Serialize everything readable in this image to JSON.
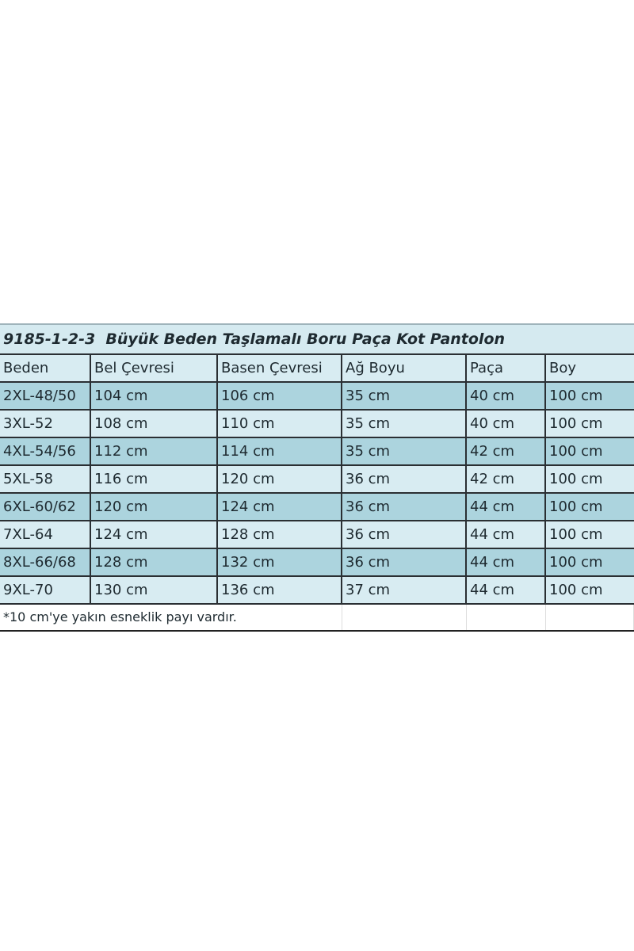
{
  "title": "9185-1-2-3  Büyük Beden Taşlamalı Boru Paça Kot Pantolon",
  "headers": [
    "Beden",
    "Bel Çevresi",
    "Basen Çevresi",
    "Ağ Boyu",
    "Paça",
    "Boy"
  ],
  "rows": [
    [
      "2XL-48/50",
      "104 cm",
      "106 cm",
      "35 cm",
      "40 cm",
      "100 cm"
    ],
    [
      "3XL-52",
      "108 cm",
      "110 cm",
      "35 cm",
      "40 cm",
      "100 cm"
    ],
    [
      "4XL-54/56",
      "112 cm",
      "114 cm",
      "35 cm",
      "42 cm",
      "100 cm"
    ],
    [
      "5XL-58",
      "116 cm",
      "120 cm",
      "36 cm",
      "42 cm",
      "100 cm"
    ],
    [
      "6XL-60/62",
      "120 cm",
      "124 cm",
      "36 cm",
      "44 cm",
      "100 cm"
    ],
    [
      "7XL-64",
      "124 cm",
      "128 cm",
      "36 cm",
      "44 cm",
      "100 cm"
    ],
    [
      "8XL-66/68",
      "128 cm",
      "132 cm",
      "36 cm",
      "44 cm",
      "100 cm"
    ],
    [
      "9XL-70",
      "130 cm",
      "136 cm",
      "37 cm",
      "44 cm",
      "100 cm"
    ]
  ],
  "note": "*10 cm'ye yakın esneklik payı vardır.",
  "colors": {
    "row_dark": "#acd4de",
    "row_light": "#d8ecf2"
  }
}
